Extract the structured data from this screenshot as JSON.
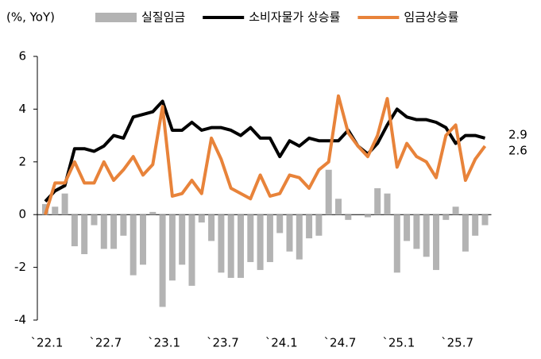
{
  "chart_data": {
    "type": "bar-line",
    "y_label": "(%, YoY)",
    "categories": [
      "`22.1",
      null,
      null,
      null,
      null,
      null,
      "`22.7",
      null,
      null,
      null,
      null,
      null,
      "`23.1",
      null,
      null,
      null,
      null,
      null,
      "`23.7",
      null,
      null,
      null,
      null,
      null,
      "`24.1",
      null,
      null,
      null,
      null,
      null,
      "`24.7",
      null,
      null,
      null,
      null,
      null,
      "`25.1",
      null,
      null,
      null,
      null,
      null,
      "`25.7",
      null,
      null,
      null
    ],
    "series": [
      {
        "name": "실질임금",
        "type": "bar",
        "color": "#b3b3b3",
        "values": [
          0.4,
          0.3,
          0.8,
          -1.2,
          -1.5,
          -0.4,
          -1.3,
          -1.3,
          -0.8,
          -2.3,
          -1.9,
          0.1,
          -3.5,
          -2.5,
          -1.9,
          -2.7,
          -0.3,
          -1.0,
          -2.2,
          -2.4,
          -2.4,
          -1.8,
          -2.1,
          -1.8,
          -0.7,
          -1.4,
          -1.7,
          -0.9,
          -0.8,
          1.7,
          0.6,
          -0.2,
          0,
          -0.1,
          1.0,
          0.8,
          -2.2,
          -1.0,
          -1.3,
          -1.6,
          -2.1,
          -0.2,
          0.3,
          -1.4,
          -0.8,
          -0.4
        ]
      },
      {
        "name": "소비자물가 상승률",
        "type": "line",
        "color": "#000000",
        "values": [
          0.5,
          0.9,
          1.1,
          2.5,
          2.5,
          2.4,
          2.6,
          3.0,
          2.9,
          3.7,
          3.8,
          3.9,
          4.3,
          3.2,
          3.2,
          3.5,
          3.2,
          3.3,
          3.3,
          3.2,
          3.0,
          3.3,
          2.9,
          2.9,
          2.2,
          2.8,
          2.6,
          2.9,
          2.8,
          2.8,
          2.8,
          3.2,
          2.6,
          2.3,
          2.7,
          3.4,
          4.0,
          3.7,
          3.6,
          3.6,
          3.5,
          3.3,
          2.7,
          3.0,
          3.0,
          2.9
        ]
      },
      {
        "name": "임금상승률",
        "type": "line",
        "color": "#e8833a",
        "values": [
          0,
          1.2,
          1.2,
          2.0,
          1.2,
          1.2,
          2.0,
          1.3,
          1.7,
          2.2,
          1.5,
          1.9,
          4.1,
          0.7,
          0.8,
          1.3,
          0.8,
          2.9,
          2.1,
          1.0,
          0.8,
          0.6,
          1.5,
          0.7,
          0.8,
          1.5,
          1.4,
          1.0,
          1.7,
          2.0,
          4.5,
          3.1,
          2.6,
          2.2,
          3.0,
          4.4,
          1.8,
          2.7,
          2.2,
          2.0,
          1.4,
          3.0,
          3.4,
          1.3,
          2.1,
          2.6
        ]
      }
    ],
    "ylim": [
      -4,
      6
    ],
    "yticks": [
      -4,
      -2,
      0,
      2,
      4,
      6
    ]
  }
}
